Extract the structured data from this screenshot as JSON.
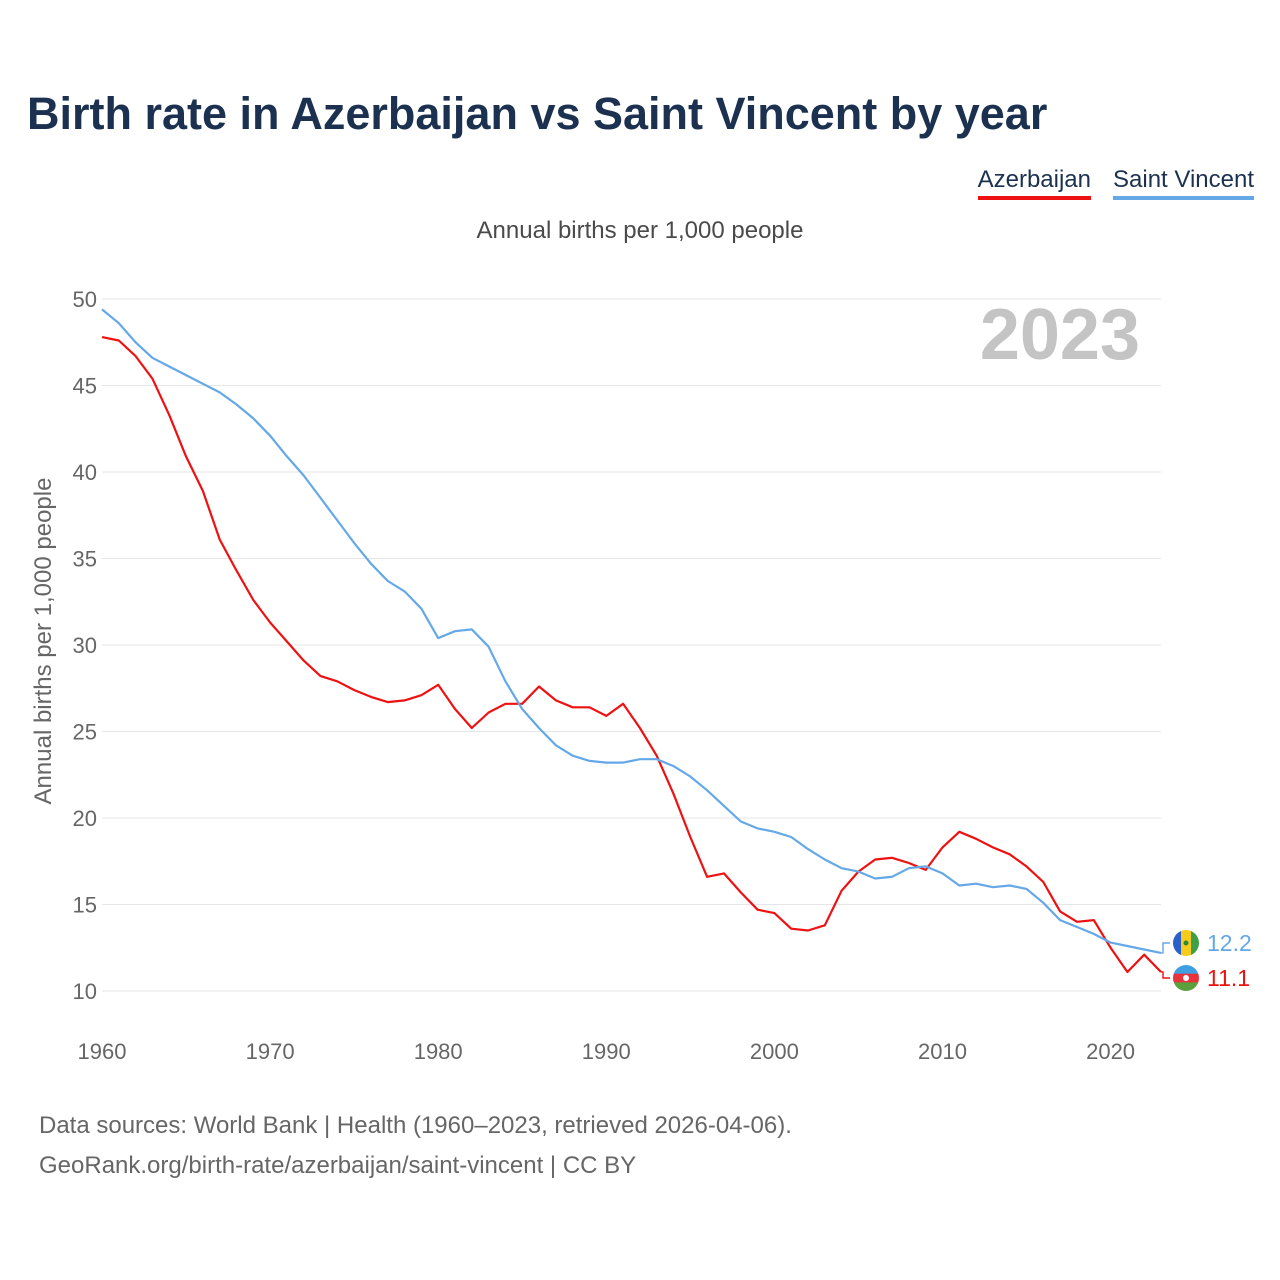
{
  "title": "Birth rate in Azerbaijan vs Saint Vincent by year",
  "subtitle": "Annual births per 1,000 people",
  "colors": {
    "azerbaijan": "#ee1111",
    "saint_vincent": "#64a8e8",
    "title": "#1c3150",
    "year": "#c4c4c4"
  },
  "chart_data": {
    "type": "line",
    "title": "Birth rate in Azerbaijan vs Saint Vincent by year",
    "subtitle": "Annual births per 1,000 people",
    "ylabel": "Annual births per 1,000 people",
    "xlabel": "",
    "year_label": "2023",
    "xlim": [
      1960,
      2023
    ],
    "ylim": [
      10,
      50
    ],
    "x_ticks": [
      "1960",
      "1970",
      "1980",
      "1990",
      "2000",
      "2010",
      "2020"
    ],
    "y_ticks": [
      "10",
      "15",
      "20",
      "25",
      "30",
      "35",
      "40",
      "45",
      "50"
    ],
    "grid": true,
    "legend_position": "top-right",
    "x": [
      1960,
      1961,
      1962,
      1963,
      1964,
      1965,
      1966,
      1967,
      1968,
      1969,
      1970,
      1971,
      1972,
      1973,
      1974,
      1975,
      1976,
      1977,
      1978,
      1979,
      1980,
      1981,
      1982,
      1983,
      1984,
      1985,
      1986,
      1987,
      1988,
      1989,
      1990,
      1991,
      1992,
      1993,
      1994,
      1995,
      1996,
      1997,
      1998,
      1999,
      2000,
      2001,
      2002,
      2003,
      2004,
      2005,
      2006,
      2007,
      2008,
      2009,
      2010,
      2011,
      2012,
      2013,
      2014,
      2015,
      2016,
      2017,
      2018,
      2019,
      2020,
      2021,
      2022,
      2023
    ],
    "series": [
      {
        "name": "Azerbaijan",
        "color": "#ee1111",
        "end_label": "11.1",
        "values": [
          47.8,
          47.6,
          46.7,
          45.4,
          43.3,
          40.9,
          38.9,
          36.1,
          34.3,
          32.6,
          31.3,
          30.2,
          29.1,
          28.2,
          27.9,
          27.4,
          27.0,
          26.7,
          26.8,
          27.1,
          27.7,
          26.3,
          25.2,
          26.1,
          26.6,
          26.6,
          27.6,
          26.8,
          26.4,
          26.4,
          25.9,
          26.6,
          25.2,
          23.6,
          21.4,
          18.9,
          16.6,
          16.8,
          15.7,
          14.7,
          14.5,
          13.6,
          13.5,
          13.8,
          15.8,
          16.9,
          17.6,
          17.7,
          17.4,
          17.0,
          18.3,
          19.2,
          18.8,
          18.3,
          17.9,
          17.2,
          16.3,
          14.6,
          14.0,
          14.1,
          12.5,
          11.1,
          12.1,
          11.1
        ]
      },
      {
        "name": "Saint Vincent",
        "color": "#64a8e8",
        "end_label": "12.2",
        "values": [
          49.4,
          48.6,
          47.5,
          46.6,
          46.1,
          45.6,
          45.1,
          44.6,
          43.9,
          43.1,
          42.1,
          40.9,
          39.8,
          38.5,
          37.2,
          35.9,
          34.7,
          33.7,
          33.1,
          32.1,
          30.4,
          30.8,
          30.9,
          29.9,
          27.9,
          26.3,
          25.2,
          24.2,
          23.6,
          23.3,
          23.2,
          23.2,
          23.4,
          23.4,
          23.0,
          22.4,
          21.6,
          20.7,
          19.8,
          19.4,
          19.2,
          18.9,
          18.2,
          17.6,
          17.1,
          16.9,
          16.5,
          16.6,
          17.1,
          17.2,
          16.8,
          16.1,
          16.2,
          16.0,
          16.1,
          15.9,
          15.1,
          14.1,
          13.7,
          13.3,
          12.8,
          12.6,
          12.4,
          12.2
        ]
      }
    ]
  },
  "footer": {
    "sources": "Data sources: World Bank | Health (1960–2023, retrieved 2026-04-06).",
    "credit": "GeoRank.org/birth-rate/azerbaijan/saint-vincent | CC BY"
  }
}
